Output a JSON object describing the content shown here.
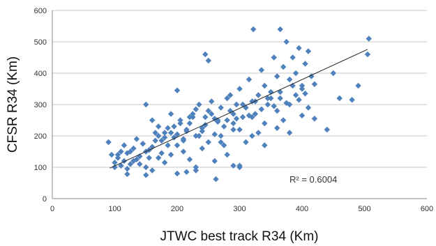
{
  "chart_data": {
    "type": "scatter",
    "xlabel": "JTWC best track R34 (Km)",
    "ylabel": "CFSR R34 (Km)",
    "xlim": [
      0,
      600
    ],
    "ylim": [
      0,
      600
    ],
    "x_ticks": [
      "0",
      "100",
      "200",
      "300",
      "400",
      "500",
      "600"
    ],
    "y_ticks": [
      "0",
      "100",
      "200",
      "300",
      "400",
      "500",
      "600"
    ],
    "grid": "horizontal",
    "annotation": "R² = 0.6004",
    "marker_color": "#4F81BD",
    "trendline": {
      "x": [
        92,
        505
      ],
      "y": [
        97,
        476
      ]
    },
    "series": [
      {
        "x": [
          90,
          95,
          100,
          105,
          110,
          115,
          120,
          125,
          130,
          135,
          140,
          145,
          150,
          155,
          160,
          165,
          170,
          175,
          180,
          185,
          190,
          195,
          200,
          205,
          210,
          215,
          220,
          225,
          230,
          235,
          240,
          245,
          250,
          255,
          260,
          265,
          270,
          275,
          280,
          285,
          290,
          295,
          300,
          305,
          310,
          315,
          320,
          325,
          330,
          335,
          340,
          345,
          350,
          355,
          360,
          365,
          370,
          375,
          380,
          385,
          390,
          395,
          400,
          405,
          410,
          415,
          420,
          100,
          110,
          120,
          130,
          140,
          150,
          160,
          170,
          180,
          190,
          200,
          210,
          220,
          230,
          240,
          250,
          260,
          270,
          280,
          290,
          300,
          310,
          320,
          330,
          340,
          350,
          360,
          370,
          380,
          390,
          400,
          410,
          105,
          115,
          125,
          135,
          145,
          155,
          165,
          175,
          185,
          195,
          205,
          215,
          225,
          235,
          245,
          255,
          265,
          275,
          285,
          295,
          305,
          315,
          325,
          335,
          345,
          355,
          365,
          375,
          385,
          395,
          405,
          150,
          160,
          170,
          180,
          190,
          200,
          210,
          220,
          230,
          240,
          250,
          260,
          270,
          280,
          290,
          300,
          320,
          340,
          360,
          380,
          400,
          420,
          440,
          450,
          460,
          480,
          490,
          505,
          507,
          365,
          322,
          245,
          262,
          290,
          300,
          200,
          215,
          230,
          150,
          120
        ],
        "y": [
          180,
          140,
          115,
          130,
          150,
          120,
          145,
          110,
          160,
          125,
          135,
          175,
          150,
          130,
          165,
          185,
          200,
          145,
          195,
          170,
          210,
          230,
          205,
          250,
          185,
          220,
          240,
          270,
          200,
          300,
          225,
          260,
          280,
          310,
          205,
          245,
          290,
          170,
          250,
          330,
          220,
          300,
          350,
          260,
          290,
          380,
          310,
          270,
          330,
          410,
          360,
          300,
          340,
          450,
          390,
          320,
          420,
          500,
          380,
          450,
          400,
          480,
          360,
          430,
          470,
          390,
          365,
          100,
          105,
          95,
          120,
          110,
          100,
          90,
          130,
          115,
          140,
          170,
          150,
          125,
          100,
          160,
          180,
          120,
          200,
          140,
          240,
          220,
          180,
          260,
          210,
          240,
          320,
          280,
          250,
          300,
          330,
          350,
          290,
          140,
          170,
          150,
          190,
          175,
          155,
          210,
          185,
          225,
          195,
          240,
          215,
          260,
          200,
          235,
          270,
          250,
          230,
          280,
          255,
          300,
          265,
          310,
          285,
          320,
          295,
          340,
          305,
          360,
          315,
          335,
          300,
          250,
          230,
          210,
          270,
          345,
          190,
          260,
          285,
          215,
          440,
          255,
          180,
          320,
          270,
          105,
          200,
          170,
          225,
          210,
          265,
          255,
          220,
          400,
          320,
          315,
          360,
          460,
          510,
          540,
          540,
          460,
          62,
          105,
          100,
          80,
          85,
          90,
          75,
          78
        ]
      }
    ]
  }
}
